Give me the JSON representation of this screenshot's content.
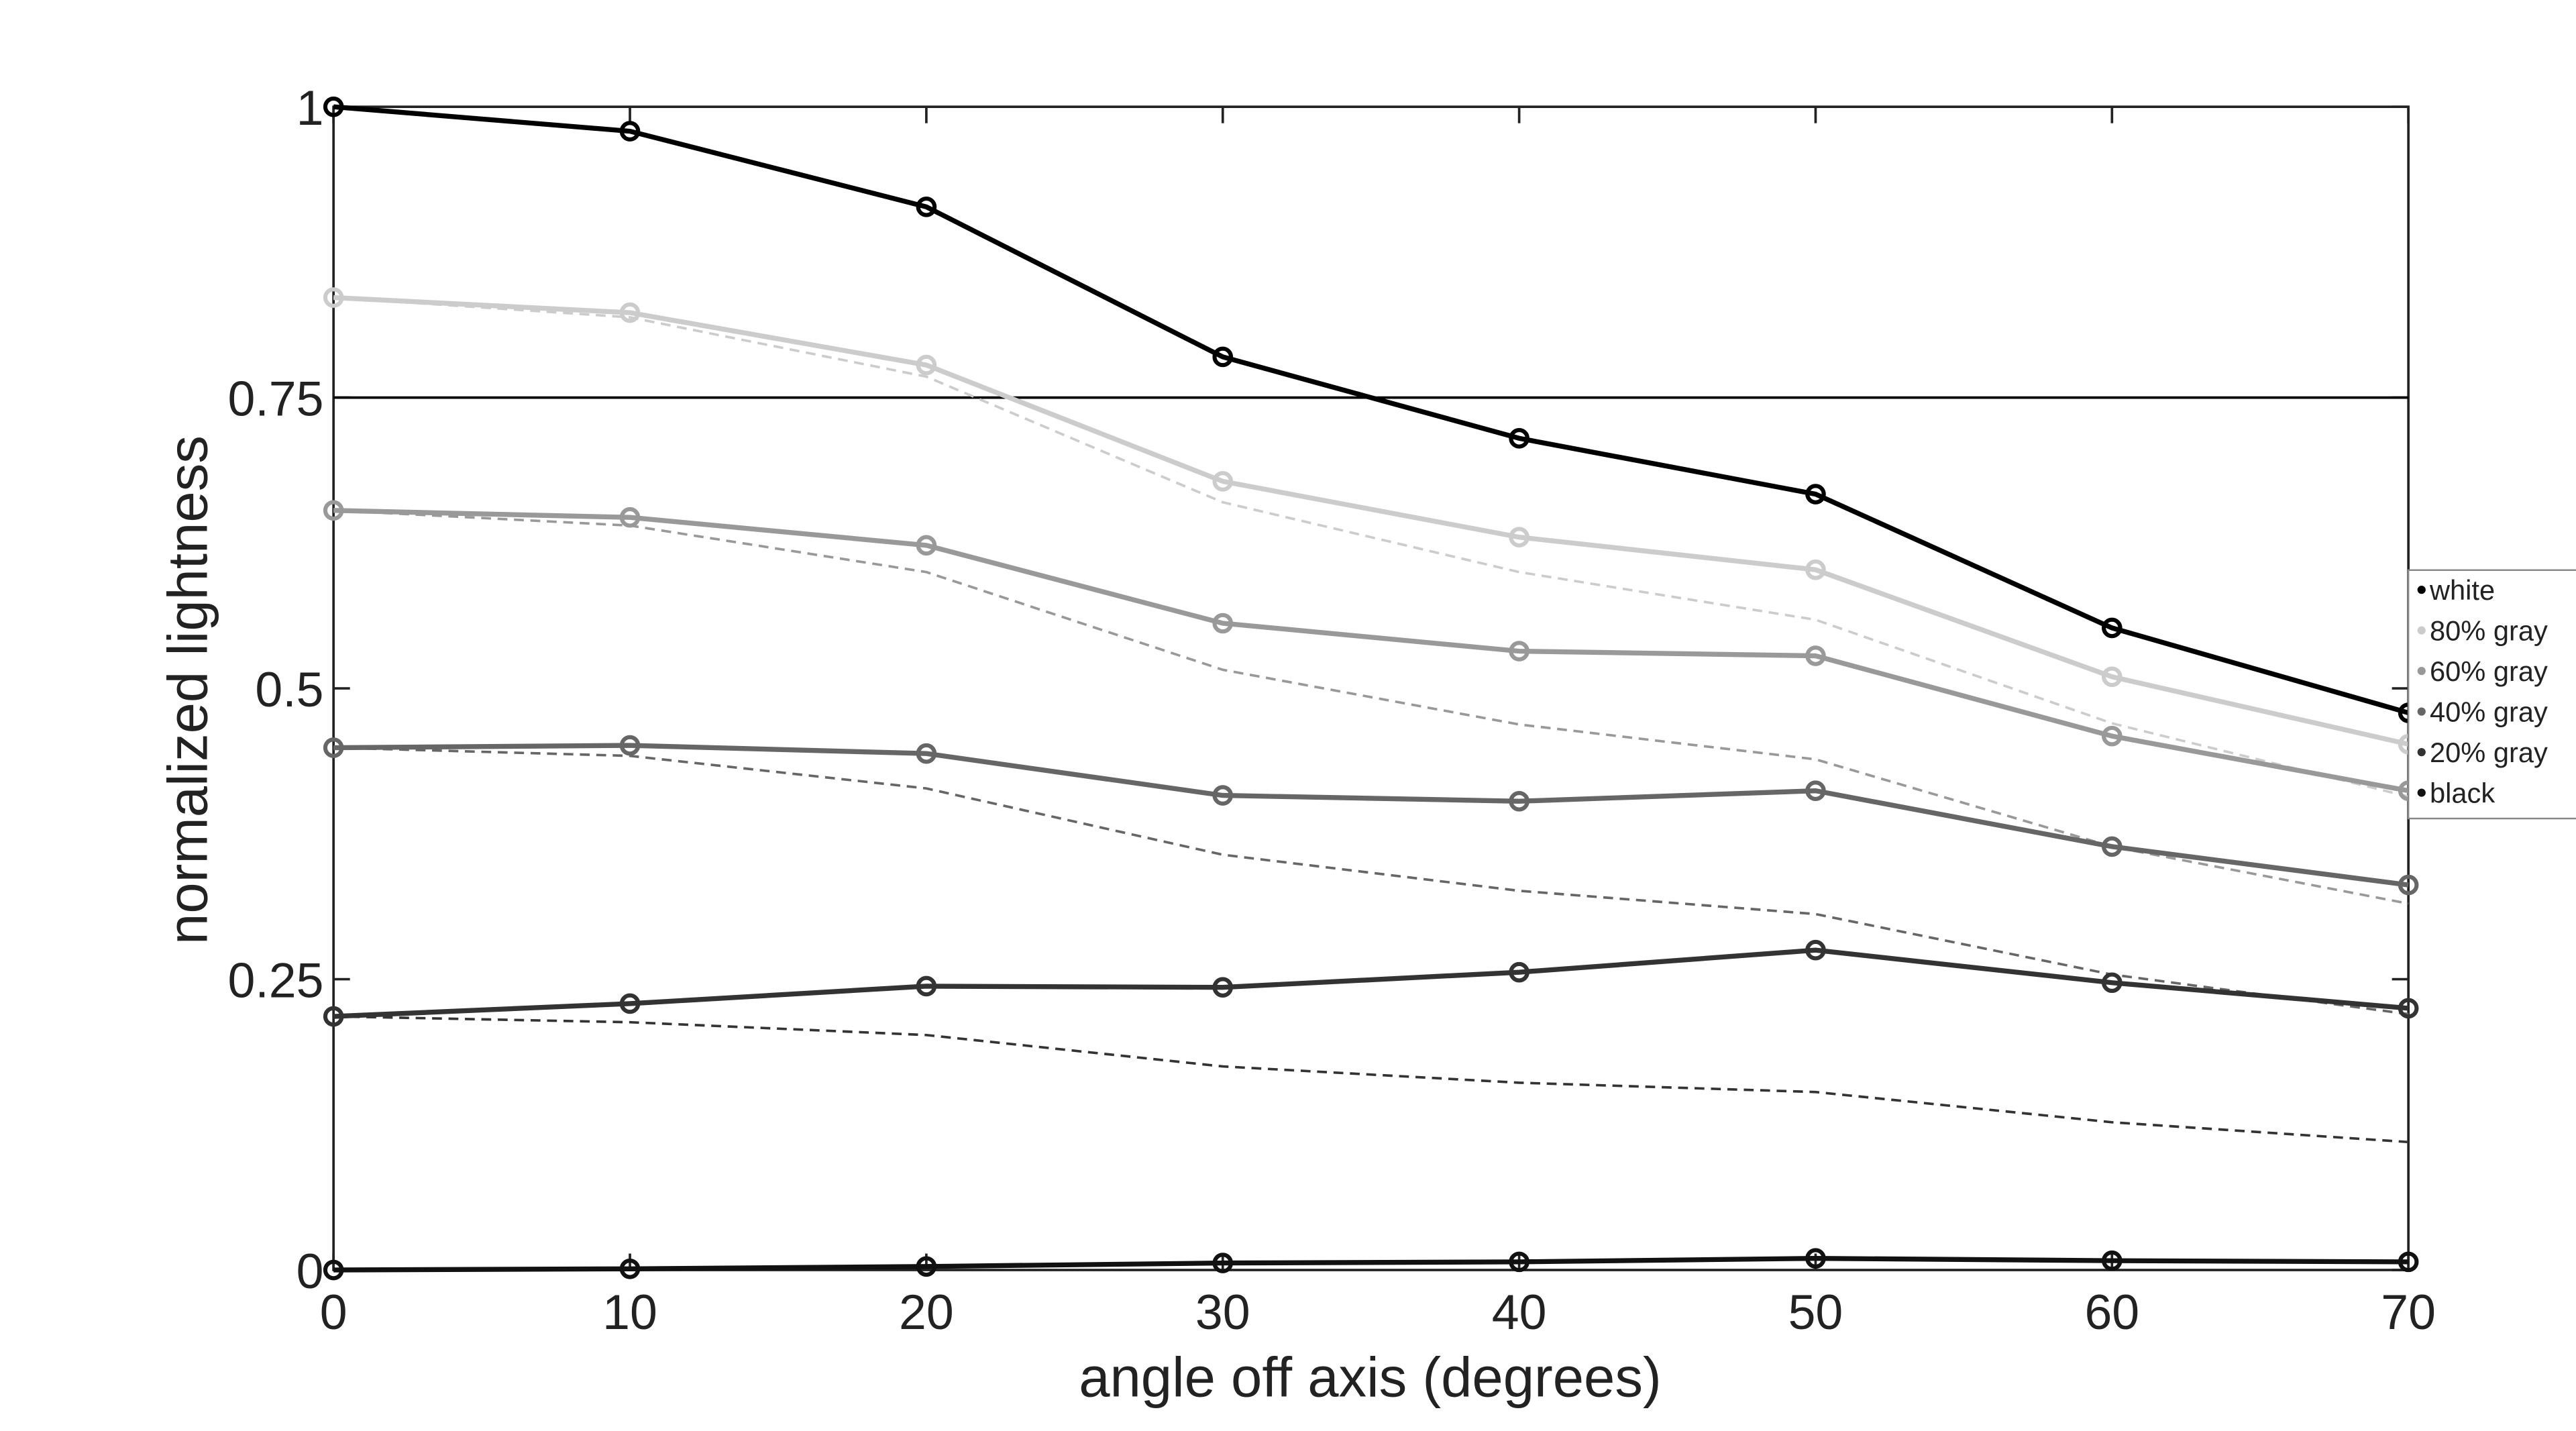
{
  "chart_data": {
    "type": "line",
    "xlabel": "angle off axis (degrees)",
    "ylabel": "normalized lightness",
    "x": [
      0,
      10,
      20,
      30,
      40,
      50,
      60,
      70
    ],
    "xlim": [
      0,
      70
    ],
    "xticks": [
      0,
      10,
      20,
      30,
      40,
      50,
      60,
      70
    ],
    "ylim": [
      0,
      1
    ],
    "yticks": [
      0,
      0.25,
      0.5,
      0.75,
      1
    ],
    "grid": false,
    "legend": "right",
    "hline": 0.75,
    "hline_color": "#000000",
    "series": [
      {
        "name": "white",
        "color": "#000000",
        "values": [
          1,
          0.979,
          0.914,
          0.785,
          0.715,
          0.667,
          0.552,
          0.479
        ]
      },
      {
        "name": "80% gray",
        "color": "#cccccc",
        "values": [
          0.836,
          0.823,
          0.778,
          0.678,
          0.63,
          0.602,
          0.51,
          0.452
        ]
      },
      {
        "name": "60% gray",
        "color": "#999999",
        "values": [
          0.653,
          0.647,
          0.623,
          0.556,
          0.532,
          0.528,
          0.459,
          0.412
        ]
      },
      {
        "name": "40% gray",
        "color": "#666666",
        "values": [
          0.449,
          0.451,
          0.444,
          0.408,
          0.403,
          0.412,
          0.364,
          0.331
        ]
      },
      {
        "name": "20% gray",
        "color": "#333333",
        "values": [
          0.218,
          0.229,
          0.244,
          0.243,
          0.256,
          0.275,
          0.247,
          0.225
        ]
      },
      {
        "name": "black",
        "color": "#111111",
        "values": [
          0,
          0.001,
          0.003,
          0.006,
          0.007,
          0.01,
          0.008,
          0.007
        ]
      }
    ],
    "dashed_series": [
      {
        "color": "#cccccc",
        "values": [
          0.836,
          0.819,
          0.768,
          0.66,
          0.6,
          0.559,
          0.47,
          0.407
        ]
      },
      {
        "color": "#999999",
        "values": [
          0.653,
          0.64,
          0.6,
          0.516,
          0.469,
          0.439,
          0.364,
          0.315
        ]
      },
      {
        "color": "#666666",
        "values": [
          0.449,
          0.442,
          0.414,
          0.357,
          0.326,
          0.306,
          0.254,
          0.22
        ]
      },
      {
        "color": "#333333",
        "values": [
          0.218,
          0.213,
          0.202,
          0.175,
          0.161,
          0.153,
          0.127,
          0.11
        ]
      }
    ]
  }
}
